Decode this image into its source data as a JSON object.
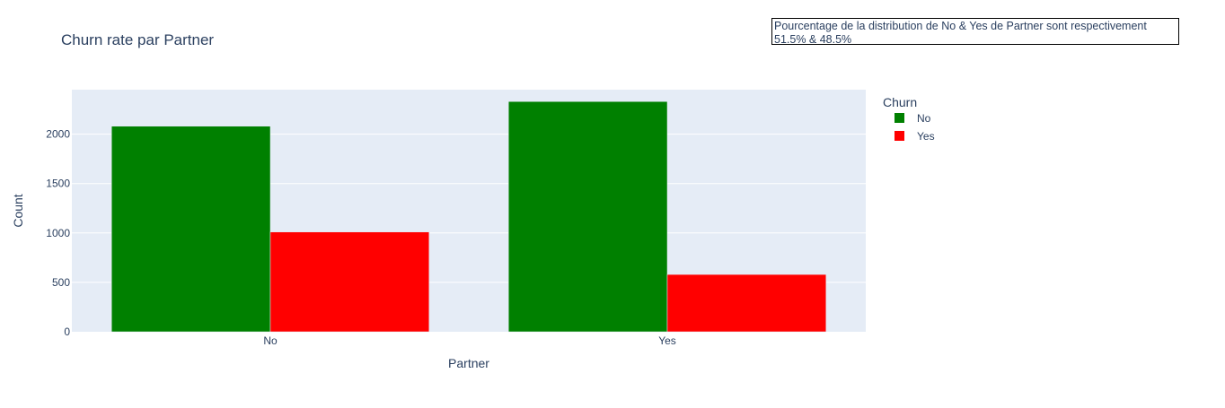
{
  "annotation": {
    "line1": "Pourcentage de la distribution de No & Yes de Partner sont respectivement",
    "line2": "51.5% & 48.5%"
  },
  "chart_data": {
    "type": "bar",
    "title": "Churn rate par Partner",
    "xlabel": "Partner",
    "ylabel": "Count",
    "categories": [
      "No",
      "Yes"
    ],
    "series": [
      {
        "name": "No",
        "values": [
          2080,
          2330
        ],
        "color": "#008000"
      },
      {
        "name": "Yes",
        "values": [
          1010,
          580
        ],
        "color": "#ff0000"
      }
    ],
    "ylim": [
      0,
      2450
    ],
    "yticks": [
      0,
      500,
      1000,
      1500,
      2000
    ],
    "legend": {
      "title": "Churn",
      "placement": "right"
    },
    "grid": true,
    "plot_background": "#e5ecf6"
  }
}
